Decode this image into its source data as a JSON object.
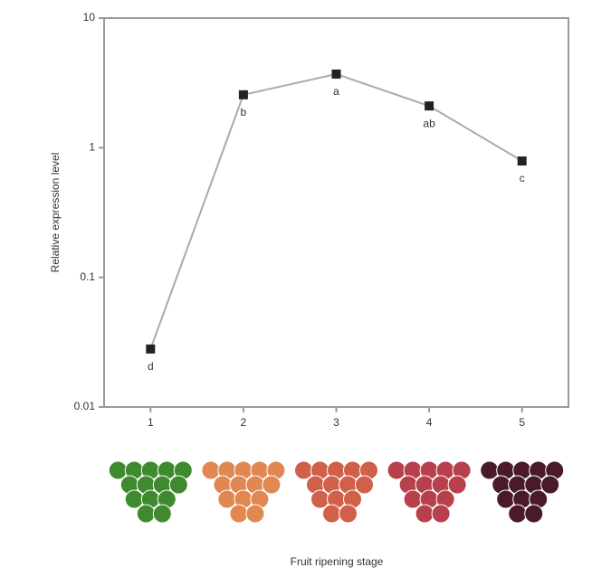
{
  "chart_data": {
    "type": "line",
    "x_label": "Fruit ripening stage",
    "y_label": "Relative expression level",
    "categories": [
      "1",
      "2",
      "3",
      "4",
      "5"
    ],
    "values": [
      0.028,
      2.56,
      3.7,
      2.1,
      0.79
    ],
    "annotations": [
      "d",
      "b",
      "a",
      "ab",
      "c"
    ],
    "color": "#222222",
    "line_color": "#aaaaaa",
    "log_scale": true,
    "ylim": [
      0.01,
      10
    ],
    "yticks": [
      0.01,
      0.1,
      1,
      10
    ]
  }
}
